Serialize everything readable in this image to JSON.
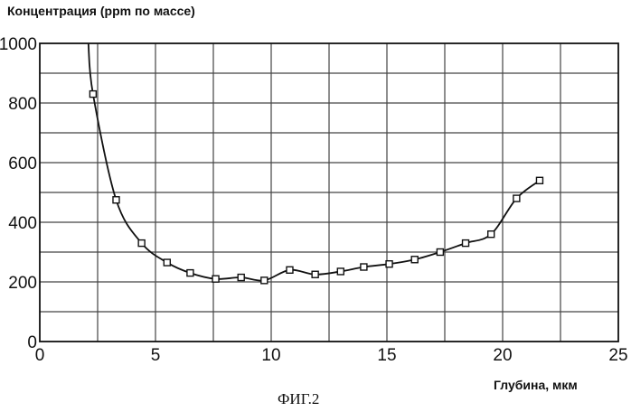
{
  "chart_data": {
    "type": "line",
    "title": "",
    "ylabel": "Концентрация (ppm по массе)",
    "xlabel": "Глубина, мкм",
    "caption": "ФИГ.2",
    "xlim": [
      0,
      25
    ],
    "ylim": [
      0,
      1000
    ],
    "x_ticks": [
      0,
      5,
      10,
      15,
      20,
      25
    ],
    "y_ticks": [
      0,
      200,
      400,
      600,
      800,
      1000
    ],
    "grid": true,
    "series": [
      {
        "x": [
          2.1,
          2.3,
          3.3,
          4.4,
          5.5,
          6.5,
          7.6,
          8.7,
          9.7,
          10.8,
          11.9,
          13.0,
          14.0,
          15.1,
          16.2,
          17.3,
          18.4,
          19.5,
          20.6,
          21.6
        ],
        "y": [
          1000,
          830,
          475,
          330,
          265,
          230,
          210,
          215,
          205,
          240,
          225,
          235,
          250,
          260,
          275,
          300,
          330,
          360,
          480,
          540
        ],
        "markers": [
          false,
          true,
          true,
          true,
          true,
          true,
          true,
          true,
          true,
          true,
          true,
          true,
          true,
          true,
          true,
          true,
          true,
          true,
          true,
          true
        ]
      }
    ]
  }
}
